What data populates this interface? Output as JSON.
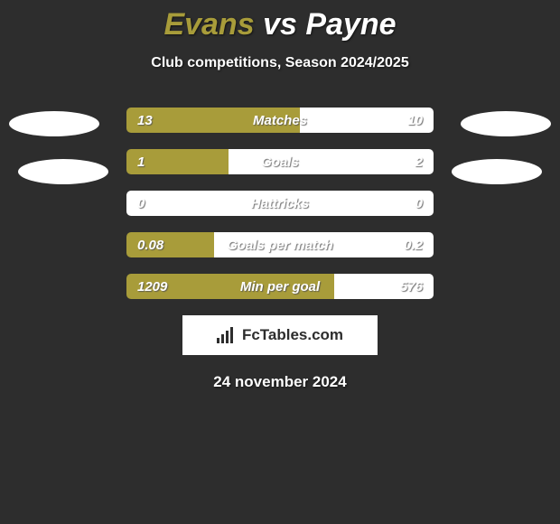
{
  "title": {
    "player1": "Evans",
    "vs": "vs",
    "player2": "Payne"
  },
  "subtitle": "Club competitions, Season 2024/2025",
  "colors": {
    "player1": "#a89c3a",
    "player2": "#ffffff",
    "background": "#2d2d2d"
  },
  "stats": [
    {
      "label": "Matches",
      "left_value": "13",
      "right_value": "10",
      "left_pct": 56.5,
      "right_pct": 43.5
    },
    {
      "label": "Goals",
      "left_value": "1",
      "right_value": "2",
      "left_pct": 33.3,
      "right_pct": 66.7
    },
    {
      "label": "Hattricks",
      "left_value": "0",
      "right_value": "0",
      "left_pct": 0,
      "right_pct": 100
    },
    {
      "label": "Goals per match",
      "left_value": "0.08",
      "right_value": "0.2",
      "left_pct": 28.6,
      "right_pct": 71.4
    },
    {
      "label": "Min per goal",
      "left_value": "1209",
      "right_value": "576",
      "left_pct": 67.7,
      "right_pct": 32.3
    }
  ],
  "logo": {
    "brand": "FcTables.com"
  },
  "date": "24 november 2024"
}
